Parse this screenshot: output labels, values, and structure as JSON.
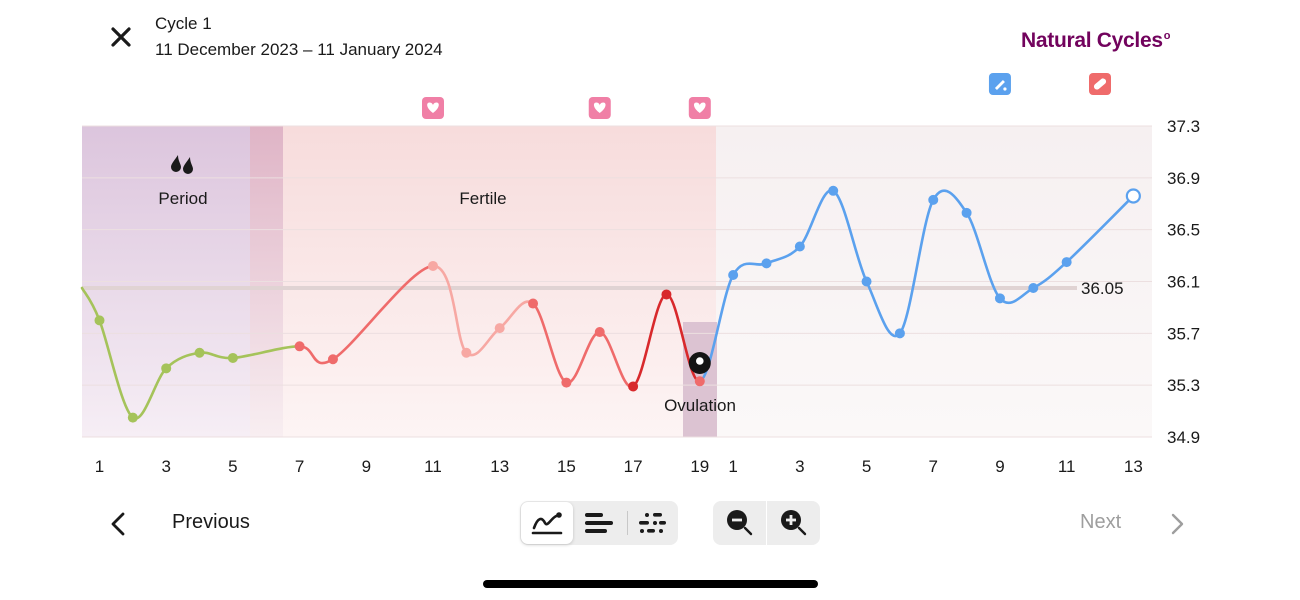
{
  "header": {
    "cycle_title": "Cycle 1",
    "cycle_dates": "11 December 2023 – 11 January 2024",
    "brand": "Natural Cycles",
    "brand_mark": "o"
  },
  "chart_data": {
    "type": "line",
    "y_ticks": [
      "37.3",
      "36.9",
      "36.5",
      "36.1",
      "35.7",
      "35.3",
      "34.9"
    ],
    "ylim": [
      34.9,
      37.3
    ],
    "x_ticks": [
      "1",
      "3",
      "5",
      "7",
      "9",
      "11",
      "13",
      "15",
      "17",
      "19",
      "1",
      "3",
      "5",
      "7",
      "9",
      "11",
      "13"
    ],
    "x_tick_index": [
      0,
      2,
      4,
      6,
      8,
      10,
      12,
      14,
      16,
      18,
      19,
      21,
      23,
      25,
      27,
      29,
      31
    ],
    "cover_line": {
      "value": 36.05,
      "label": "36.05"
    },
    "zones": [
      {
        "label": "Period",
        "start": 1,
        "end": 6
      },
      {
        "label": "Fertile",
        "start": 6,
        "end": 19
      },
      {
        "label": "Ovulation",
        "day": 19
      }
    ],
    "phase_colors": {
      "period": "#a5c35a",
      "fertile": "#ef6b6b",
      "fertile_light": "#f7a8a3",
      "fertile_dark": "#d8292c",
      "luteal": "#5ba1ee"
    },
    "points": [
      {
        "i": 0,
        "day": 1,
        "y": 35.8,
        "phase": "period",
        "marker": true
      },
      {
        "i": 1,
        "day": 2,
        "y": 35.05,
        "phase": "period",
        "marker": true
      },
      {
        "i": 2,
        "day": 3,
        "y": 35.43,
        "phase": "period",
        "marker": true
      },
      {
        "i": 3,
        "day": 4,
        "y": 35.55,
        "phase": "period",
        "marker": true
      },
      {
        "i": 4,
        "day": 5,
        "y": 35.51,
        "phase": "period",
        "marker": true
      },
      {
        "i": 6,
        "day": 7,
        "y": 35.6,
        "phase": "fertile",
        "marker": true
      },
      {
        "i": 7,
        "day": 8,
        "y": 35.5,
        "phase": "fertile",
        "marker": true
      },
      {
        "i": 10,
        "day": 11,
        "y": 36.22,
        "phase": "fertile_light",
        "marker": true
      },
      {
        "i": 11,
        "day": 12,
        "y": 35.55,
        "phase": "fertile_light",
        "marker": true
      },
      {
        "i": 12,
        "day": 13,
        "y": 35.74,
        "phase": "fertile_light",
        "marker": true
      },
      {
        "i": 13,
        "day": 14,
        "y": 35.93,
        "phase": "fertile",
        "marker": true
      },
      {
        "i": 14,
        "day": 15,
        "y": 35.32,
        "phase": "fertile",
        "marker": true
      },
      {
        "i": 15,
        "day": 16,
        "y": 35.71,
        "phase": "fertile",
        "marker": true
      },
      {
        "i": 16,
        "day": 17,
        "y": 35.29,
        "phase": "fertile_dark",
        "marker": true
      },
      {
        "i": 17,
        "day": 18,
        "y": 36.0,
        "phase": "fertile_dark",
        "marker": true
      },
      {
        "i": 18,
        "day": 19,
        "y": 35.33,
        "phase": "fertile",
        "marker": true
      },
      {
        "i": 19,
        "day": 1,
        "y": 36.15,
        "phase": "luteal",
        "marker": true
      },
      {
        "i": 20,
        "day": 2,
        "y": 36.24,
        "phase": "luteal",
        "marker": true
      },
      {
        "i": 21,
        "day": 3,
        "y": 36.37,
        "phase": "luteal",
        "marker": true
      },
      {
        "i": 22,
        "day": 4,
        "y": 36.8,
        "phase": "luteal",
        "marker": true
      },
      {
        "i": 23,
        "day": 5,
        "y": 36.1,
        "phase": "luteal",
        "marker": true
      },
      {
        "i": 24,
        "day": 6,
        "y": 35.7,
        "phase": "luteal",
        "marker": true
      },
      {
        "i": 25,
        "day": 7,
        "y": 36.73,
        "phase": "luteal",
        "marker": true
      },
      {
        "i": 26,
        "day": 8,
        "y": 36.63,
        "phase": "luteal",
        "marker": true
      },
      {
        "i": 27,
        "day": 9,
        "y": 35.97,
        "phase": "luteal",
        "marker": true
      },
      {
        "i": 28,
        "day": 10,
        "y": 36.05,
        "phase": "luteal",
        "marker": true
      },
      {
        "i": 29,
        "day": 11,
        "y": 36.25,
        "phase": "luteal",
        "marker": true
      },
      {
        "i": 31,
        "day": 13,
        "y": 36.76,
        "phase": "luteal",
        "marker": "open"
      }
    ],
    "heart_icons_at": [
      10,
      15,
      18
    ],
    "top_icons": [
      {
        "at": 27.0,
        "name": "test-icon",
        "color": "#5ba1ee"
      },
      {
        "at": 30.0,
        "name": "pill-icon",
        "color": "#ef6b6b"
      }
    ],
    "ovulation_marker_index": 18
  },
  "nav": {
    "previous_label": "Previous",
    "next_label": "Next"
  },
  "view_modes": [
    "graph",
    "list",
    "scatter"
  ],
  "zoom": [
    "zoom-out",
    "zoom-in"
  ]
}
